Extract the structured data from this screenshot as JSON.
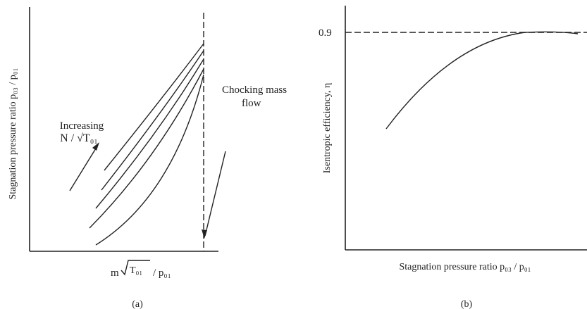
{
  "panel_a": {
    "ylabel": "Stagnation pressure ratio  p₀₃ / p₀₁",
    "xlabel_prefix": "m",
    "xlabel_sqrt": "T₀₁",
    "xlabel_suffix": "/ p₀₁",
    "annotation_line1": "Increasing",
    "annotation_line2": "N / √T₀₁",
    "choke_line1": "Chocking mass",
    "choke_line2": "flow",
    "caption": "(a)"
  },
  "panel_b": {
    "ylabel": "Isentropic efficiency, η",
    "xlabel": "Stagnation pressure ratio  p₀₃ / p₀₁",
    "tick_label": "0.9",
    "caption": "(b)"
  }
}
